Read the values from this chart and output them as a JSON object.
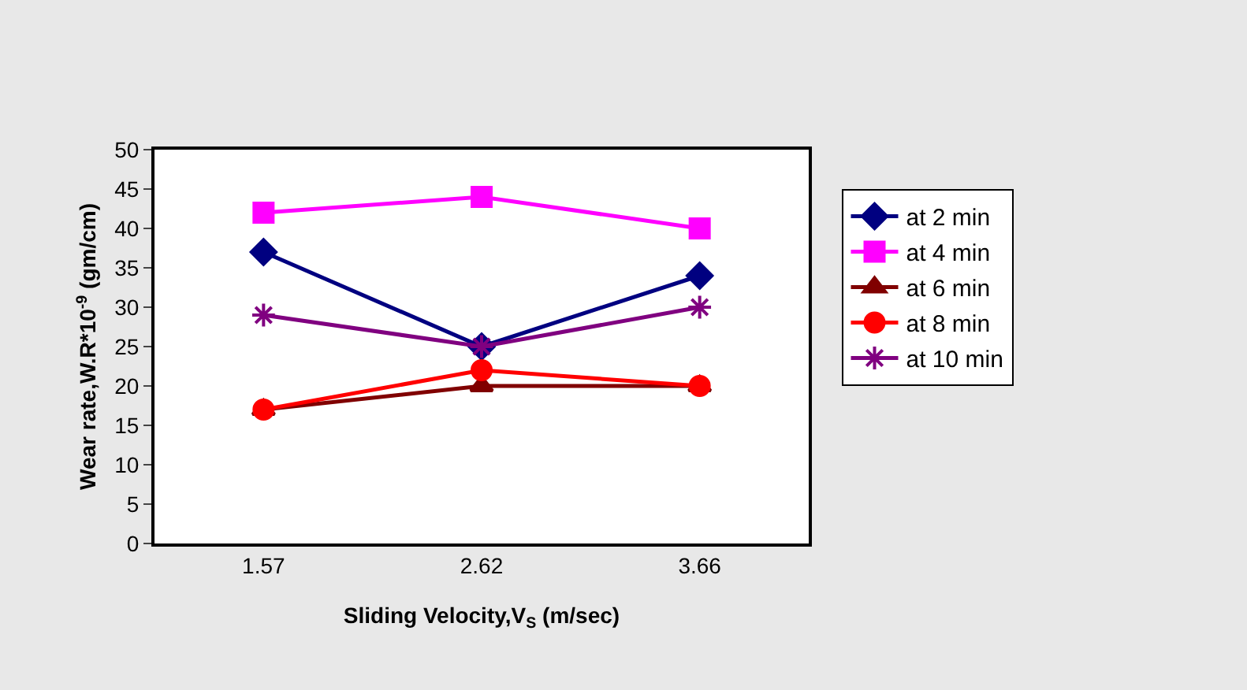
{
  "chart_data": {
    "type": "line",
    "xlabel": "Sliding Velocity,V$_{S}$ (m/sec)",
    "ylabel": "Wear rate,W.R*10$^{-9}$ (gm/cm)",
    "categories": [
      "1.57",
      "2.62",
      "3.66"
    ],
    "series": [
      {
        "name": "at 2 min",
        "color": "#000080",
        "marker": "diamond",
        "values": [
          37,
          25,
          34
        ]
      },
      {
        "name": "at 4 min",
        "color": "#ff00ff",
        "marker": "square",
        "values": [
          42,
          44,
          40
        ]
      },
      {
        "name": "at 6 min",
        "color": "#800000",
        "marker": "triangle",
        "values": [
          17,
          20,
          20
        ]
      },
      {
        "name": "at 8 min",
        "color": "#ff0000",
        "marker": "circle",
        "values": [
          17,
          22,
          20
        ]
      },
      {
        "name": "at 10 min",
        "color": "#800080",
        "marker": "cross",
        "values": [
          29,
          25,
          30
        ]
      }
    ],
    "ylim": [
      0,
      50
    ],
    "yticks": [
      0,
      5,
      10,
      15,
      20,
      25,
      30,
      35,
      40,
      45,
      50
    ],
    "legend": "right",
    "line_style": "solid"
  }
}
